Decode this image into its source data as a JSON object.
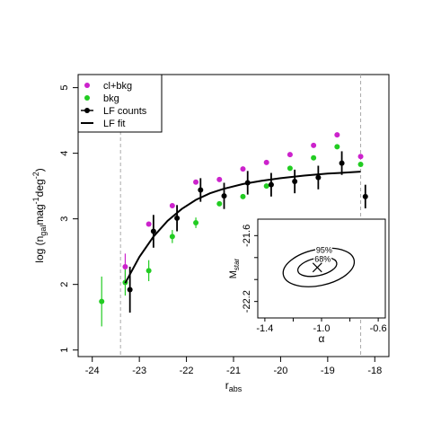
{
  "chart_data": [
    {
      "type": "scatter",
      "xlabel_base": "r",
      "xlabel_sub": "abs",
      "ylabel_parts": [
        "log (n",
        "gal",
        "mag",
        "-1",
        "deg",
        "-2",
        ")"
      ],
      "xlim": [
        -24.3,
        -17.7
      ],
      "ylim": [
        0.9,
        5.2
      ],
      "xticks": [
        -24,
        -23,
        -22,
        -21,
        -20,
        -19,
        -18
      ],
      "yticks": [
        1,
        2,
        3,
        4,
        5
      ],
      "vlines": [
        -23.4,
        -18.3
      ],
      "legend_position": "top-left",
      "grid": false,
      "series": [
        {
          "name": "cl+bkg",
          "color": "#cc22cc",
          "marker": "point",
          "points": [
            {
              "x": -23.3,
              "y": 2.27,
              "err": 0.2
            },
            {
              "x": -22.8,
              "y": 2.92
            },
            {
              "x": -22.3,
              "y": 3.2
            },
            {
              "x": -21.8,
              "y": 3.56
            },
            {
              "x": -21.3,
              "y": 3.6
            },
            {
              "x": -20.8,
              "y": 3.76
            },
            {
              "x": -20.3,
              "y": 3.86
            },
            {
              "x": -19.8,
              "y": 3.98
            },
            {
              "x": -19.3,
              "y": 4.12
            },
            {
              "x": -18.8,
              "y": 4.28
            },
            {
              "x": -18.3,
              "y": 3.95
            }
          ]
        },
        {
          "name": "bkg",
          "color": "#22cc22",
          "marker": "point",
          "points": [
            {
              "x": -23.8,
              "y": 1.74,
              "err": 0.38
            },
            {
              "x": -23.3,
              "y": 2.03,
              "err": 0.2
            },
            {
              "x": -22.8,
              "y": 2.21,
              "err": 0.16
            },
            {
              "x": -22.3,
              "y": 2.73,
              "err": 0.1
            },
            {
              "x": -21.8,
              "y": 2.94,
              "err": 0.08
            },
            {
              "x": -21.3,
              "y": 3.23
            },
            {
              "x": -20.8,
              "y": 3.34
            },
            {
              "x": -20.3,
              "y": 3.5
            },
            {
              "x": -19.8,
              "y": 3.77
            },
            {
              "x": -19.3,
              "y": 3.93
            },
            {
              "x": -18.8,
              "y": 4.1
            },
            {
              "x": -18.3,
              "y": 3.83
            }
          ]
        },
        {
          "name": "LF counts",
          "color": "#000000",
          "marker": "point",
          "points": [
            {
              "x": -23.2,
              "y": 1.92,
              "err": 0.35
            },
            {
              "x": -22.7,
              "y": 2.81,
              "err": 0.25
            },
            {
              "x": -22.2,
              "y": 3.01,
              "err": 0.2
            },
            {
              "x": -21.7,
              "y": 3.44,
              "err": 0.18
            },
            {
              "x": -21.2,
              "y": 3.35,
              "err": 0.2
            },
            {
              "x": -20.7,
              "y": 3.55,
              "err": 0.18
            },
            {
              "x": -20.2,
              "y": 3.52,
              "err": 0.18
            },
            {
              "x": -19.7,
              "y": 3.57,
              "err": 0.18
            },
            {
              "x": -19.2,
              "y": 3.63,
              "err": 0.18
            },
            {
              "x": -18.7,
              "y": 3.85,
              "err": 0.18
            },
            {
              "x": -18.2,
              "y": 3.34,
              "err": 0.18
            }
          ]
        },
        {
          "name": "LF fit",
          "color": "#000000",
          "marker": "line",
          "points": [
            {
              "x": -23.3,
              "y": 2.02
            },
            {
              "x": -23.0,
              "y": 2.42
            },
            {
              "x": -22.7,
              "y": 2.73
            },
            {
              "x": -22.4,
              "y": 2.97
            },
            {
              "x": -22.1,
              "y": 3.15
            },
            {
              "x": -21.8,
              "y": 3.29
            },
            {
              "x": -21.5,
              "y": 3.39
            },
            {
              "x": -21.2,
              "y": 3.46
            },
            {
              "x": -20.8,
              "y": 3.53
            },
            {
              "x": -20.4,
              "y": 3.58
            },
            {
              "x": -20.0,
              "y": 3.62
            },
            {
              "x": -19.5,
              "y": 3.66
            },
            {
              "x": -19.0,
              "y": 3.69
            },
            {
              "x": -18.5,
              "y": 3.71
            },
            {
              "x": -18.3,
              "y": 3.72
            }
          ]
        }
      ]
    },
    {
      "type": "contour",
      "xlabel": "α",
      "ylabel": "M",
      "ylabel_sub": "star",
      "xlim": [
        -1.45,
        -0.55
      ],
      "ylim": [
        -22.35,
        -21.45
      ],
      "xticks_labeled": [
        -1.4,
        -1.0,
        -0.6
      ],
      "xticks_minor": [
        -1.2,
        -0.8
      ],
      "xtick_labels": [
        "-1.4",
        "-1.0",
        "-0.6"
      ],
      "yticks_labeled": [
        -21.6,
        -22.2
      ],
      "yticks_minor": [
        -21.8,
        -22.0
      ],
      "ytick_labels": [
        "-21.6",
        "-22.2"
      ],
      "best_fit": {
        "alpha": -1.03,
        "mstar": -21.89
      },
      "contours": [
        {
          "label": "68%",
          "alpha_center": -1.03,
          "mstar_center": -21.885,
          "alpha_halfwidth": 0.14,
          "mstar_halfwidth": 0.08
        },
        {
          "label": "95%",
          "alpha_center": -1.02,
          "mstar_center": -21.89,
          "alpha_halfwidth": 0.255,
          "mstar_halfwidth": 0.165
        }
      ]
    }
  ]
}
